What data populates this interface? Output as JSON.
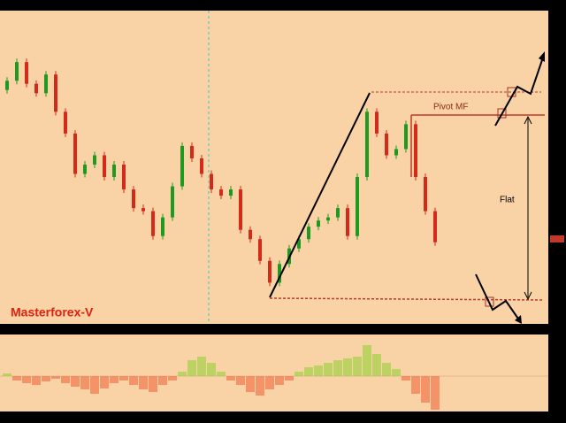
{
  "chart_data": {
    "type": "candlestick",
    "brand": "Masterforex-V",
    "annotations": [
      "Pivot MF",
      "Flat"
    ],
    "open_first": 75,
    "close": [
      78,
      84,
      77,
      74,
      80,
      68,
      61,
      48,
      51,
      54,
      47,
      51,
      43,
      37,
      36,
      28,
      34,
      44,
      57,
      53,
      48,
      43,
      41,
      43,
      30,
      27,
      20,
      13,
      19,
      24,
      27,
      31,
      33,
      34,
      37,
      28,
      47,
      68,
      61,
      54,
      56,
      64,
      47,
      36,
      26
    ],
    "up_color": "#1f9a1f",
    "down_color": "#d42a1a",
    "ylim": [
      0,
      100
    ],
    "oscillator": {
      "type": "bar",
      "ylim": [
        -40,
        40
      ],
      "up_color": "#7ed321",
      "down_color": "#f0502a",
      "values": [
        3,
        -5,
        -8,
        -10,
        -6,
        -3,
        -8,
        -12,
        -15,
        -20,
        -14,
        -8,
        -5,
        -10,
        -15,
        -18,
        -10,
        -5,
        5,
        18,
        22,
        15,
        5,
        -5,
        -10,
        -18,
        -22,
        -15,
        -10,
        -5,
        5,
        10,
        12,
        15,
        18,
        20,
        22,
        35,
        25,
        15,
        8,
        -5,
        -20,
        -30,
        -38
      ]
    }
  }
}
